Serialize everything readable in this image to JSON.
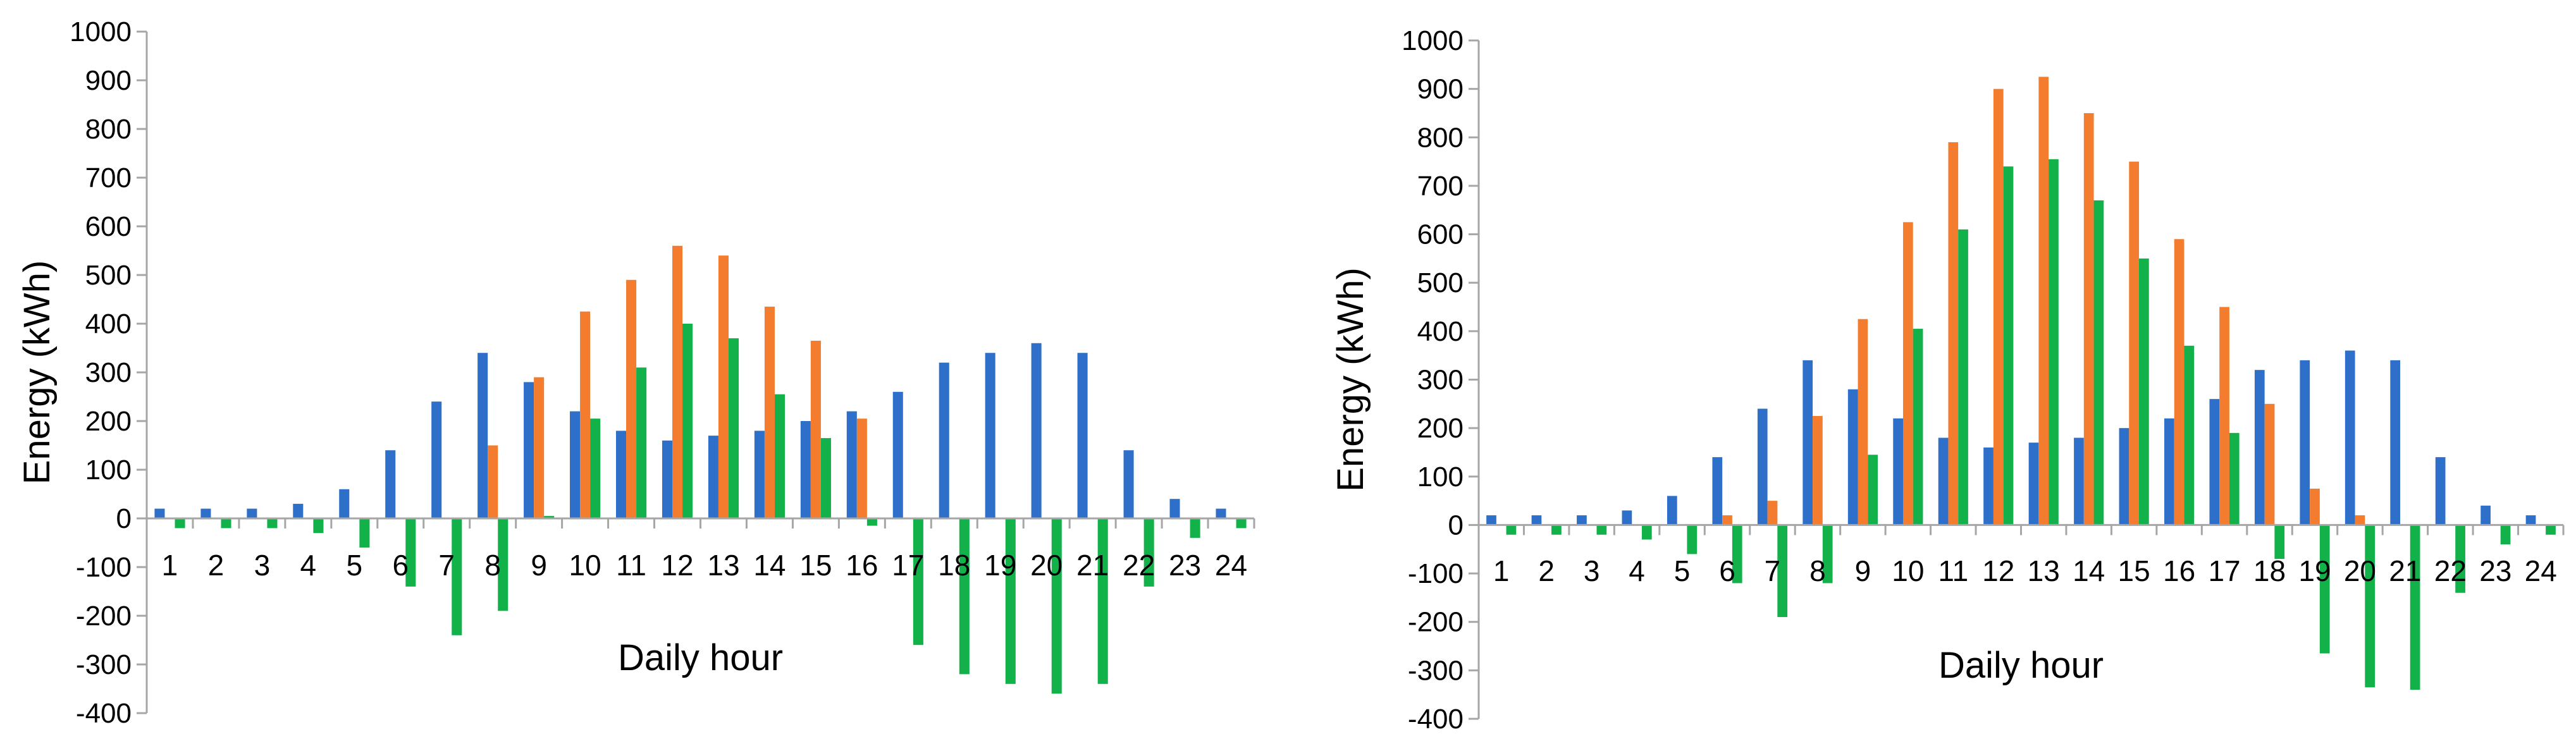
{
  "colors": {
    "series1": "#2E6FC9",
    "series2": "#F47C2E",
    "series3": "#12B14A",
    "axis": "#A6A6A6"
  },
  "chart_data": [
    {
      "type": "bar",
      "xlabel": "Daily hour",
      "ylabel": "Energy (kWh)",
      "ylim": [
        -400,
        1000
      ],
      "ytick_step": 100,
      "grid": false,
      "legend": "none",
      "categories": [
        "1",
        "2",
        "3",
        "4",
        "5",
        "6",
        "7",
        "8",
        "9",
        "10",
        "11",
        "12",
        "13",
        "14",
        "15",
        "16",
        "17",
        "18",
        "19",
        "20",
        "21",
        "22",
        "23",
        "24"
      ],
      "series": [
        {
          "values": [
            20,
            20,
            20,
            30,
            60,
            140,
            240,
            340,
            280,
            220,
            180,
            160,
            170,
            180,
            200,
            220,
            260,
            320,
            340,
            360,
            340,
            140,
            40,
            20
          ]
        },
        {
          "values": [
            0,
            0,
            0,
            0,
            0,
            0,
            0,
            150,
            290,
            425,
            490,
            560,
            540,
            435,
            365,
            205,
            0,
            0,
            0,
            0,
            0,
            0,
            0,
            0
          ]
        },
        {
          "values": [
            -20,
            -20,
            -20,
            -30,
            -60,
            -140,
            -240,
            -190,
            5,
            205,
            310,
            400,
            370,
            255,
            165,
            -15,
            -260,
            -320,
            -340,
            -360,
            -340,
            -140,
            -40,
            -20
          ]
        }
      ]
    },
    {
      "type": "bar",
      "xlabel": "Daily hour",
      "ylabel": "Energy (kWh)",
      "ylim": [
        -400,
        1000
      ],
      "ytick_step": 100,
      "grid": false,
      "legend": "none",
      "categories": [
        "1",
        "2",
        "3",
        "4",
        "5",
        "6",
        "7",
        "8",
        "9",
        "10",
        "11",
        "12",
        "13",
        "14",
        "15",
        "16",
        "17",
        "18",
        "19",
        "20",
        "21",
        "22",
        "23",
        "24"
      ],
      "series": [
        {
          "values": [
            20,
            20,
            20,
            30,
            60,
            140,
            240,
            340,
            280,
            220,
            180,
            160,
            170,
            180,
            200,
            220,
            260,
            320,
            340,
            360,
            340,
            140,
            40,
            20
          ]
        },
        {
          "values": [
            0,
            0,
            0,
            0,
            0,
            20,
            50,
            225,
            425,
            625,
            790,
            900,
            925,
            850,
            750,
            590,
            450,
            250,
            75,
            20,
            0,
            0,
            0,
            0
          ]
        },
        {
          "values": [
            -20,
            -20,
            -20,
            -30,
            -60,
            -120,
            -190,
            -120,
            145,
            405,
            610,
            740,
            755,
            670,
            550,
            370,
            190,
            -70,
            -265,
            -335,
            -340,
            -140,
            -40,
            -20
          ]
        }
      ]
    }
  ]
}
